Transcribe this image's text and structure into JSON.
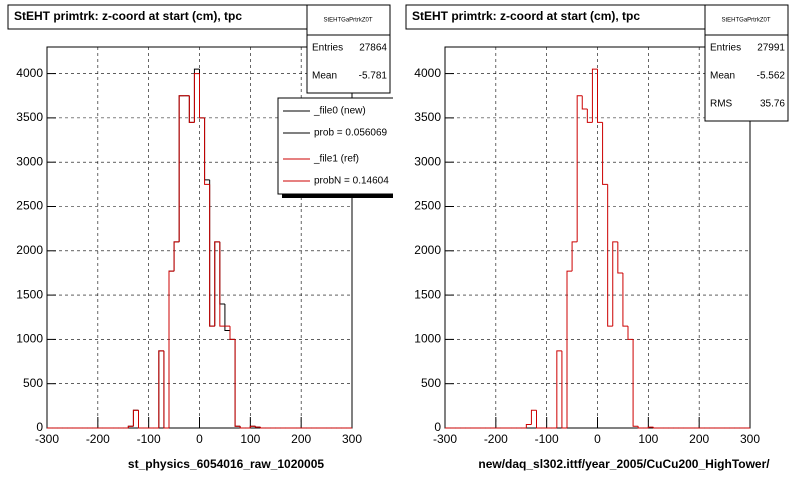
{
  "chart_data": [
    {
      "type": "histogram",
      "title": "StEHT primtrk: z-coord at start (cm), tpc",
      "xlabel": "st_physics_6054016_raw_1020005",
      "bins": [
        -300,
        -290,
        -280,
        -270,
        -260,
        -250,
        -240,
        -230,
        -220,
        -210,
        -200,
        -190,
        -180,
        -170,
        -160,
        -150,
        -140,
        -130,
        -120,
        -110,
        -100,
        -90,
        -80,
        -70,
        -60,
        -50,
        -40,
        -30,
        -20,
        -10,
        0,
        10,
        20,
        30,
        40,
        50,
        60,
        70,
        80,
        90,
        100,
        110,
        120,
        130,
        140,
        150,
        160,
        170,
        180,
        190,
        200,
        210,
        220,
        230,
        240,
        250,
        260,
        270,
        280,
        290,
        300
      ],
      "series": [
        {
          "name": "_file0 (new)",
          "color": "#000000",
          "values": [
            0,
            0,
            0,
            0,
            0,
            0,
            0,
            0,
            0,
            0,
            0,
            0,
            0,
            0,
            0,
            0,
            20,
            200,
            0,
            0,
            0,
            0,
            870,
            0,
            1770,
            2100,
            3750,
            3750,
            3450,
            4050,
            3500,
            2800,
            1150,
            2100,
            1400,
            1100,
            1000,
            20,
            0,
            0,
            20,
            10,
            0,
            0,
            0,
            0,
            0,
            0,
            0,
            0,
            0,
            0,
            0,
            0,
            0,
            0,
            0,
            0,
            0,
            0
          ]
        },
        {
          "name": "_file1 (ref)",
          "color": "#cc0000",
          "values": [
            0,
            0,
            0,
            0,
            0,
            0,
            0,
            0,
            0,
            0,
            0,
            0,
            0,
            0,
            0,
            0,
            20,
            200,
            0,
            0,
            0,
            0,
            870,
            0,
            1770,
            2100,
            3750,
            3750,
            3450,
            4000,
            3500,
            2750,
            1150,
            2100,
            1150,
            1150,
            1000,
            20,
            0,
            0,
            20,
            10,
            0,
            0,
            0,
            0,
            0,
            0,
            0,
            0,
            0,
            0,
            0,
            0,
            0,
            0,
            0,
            0,
            0,
            0
          ]
        }
      ],
      "legend_extra": [
        "prob = 0.056069",
        "probN = 0.14604"
      ],
      "stats_title": "StEHTGaPrtrkZ0T",
      "stats": [
        {
          "label": "Entries",
          "value": 27864
        },
        {
          "label": "Mean",
          "value": -5.781
        }
      ],
      "xlim": [
        -300,
        300
      ],
      "ylim": [
        0,
        4300
      ],
      "xticks": [
        -300,
        -200,
        -100,
        0,
        100,
        200,
        300
      ],
      "yticks": [
        0,
        500,
        1000,
        1500,
        2000,
        2500,
        3000,
        3500,
        4000
      ],
      "grid": true
    },
    {
      "type": "histogram",
      "title": "StEHT primtrk: z-coord at start (cm), tpc",
      "xlabel": "new/daq_sl302.ittf/year_2005/CuCu200_HighTower/",
      "bins": [
        -300,
        -290,
        -280,
        -270,
        -260,
        -250,
        -240,
        -230,
        -220,
        -210,
        -200,
        -190,
        -180,
        -170,
        -160,
        -150,
        -140,
        -130,
        -120,
        -110,
        -100,
        -90,
        -80,
        -70,
        -60,
        -50,
        -40,
        -30,
        -20,
        -10,
        0,
        10,
        20,
        30,
        40,
        50,
        60,
        70,
        80,
        90,
        100,
        110,
        120,
        130,
        140,
        150,
        160,
        170,
        180,
        190,
        200,
        210,
        220,
        230,
        240,
        250,
        260,
        270,
        280,
        290,
        300
      ],
      "series": [
        {
          "color": "#cc0000",
          "values": [
            0,
            0,
            0,
            0,
            0,
            0,
            0,
            0,
            0,
            0,
            0,
            0,
            0,
            0,
            0,
            0,
            40,
            200,
            0,
            0,
            0,
            0,
            870,
            0,
            1770,
            2100,
            3750,
            3600,
            3450,
            4050,
            3450,
            2750,
            1150,
            2100,
            1750,
            1150,
            1000,
            20,
            0,
            0,
            10,
            0,
            0,
            0,
            0,
            0,
            0,
            0,
            0,
            0,
            0,
            0,
            0,
            0,
            0,
            0,
            0,
            0,
            0,
            0
          ]
        }
      ],
      "stats_title": "StEHTGaPrtrkZ0T",
      "stats": [
        {
          "label": "Entries",
          "value": 27991
        },
        {
          "label": "Mean",
          "value": -5.562
        },
        {
          "label": "RMS",
          "value": 35.76
        }
      ],
      "xlim": [
        -300,
        300
      ],
      "ylim": [
        0,
        4300
      ],
      "xticks": [
        -300,
        -200,
        -100,
        0,
        100,
        200,
        300
      ],
      "yticks": [
        0,
        500,
        1000,
        1500,
        2000,
        2500,
        3000,
        3500,
        4000
      ],
      "grid": true
    }
  ]
}
